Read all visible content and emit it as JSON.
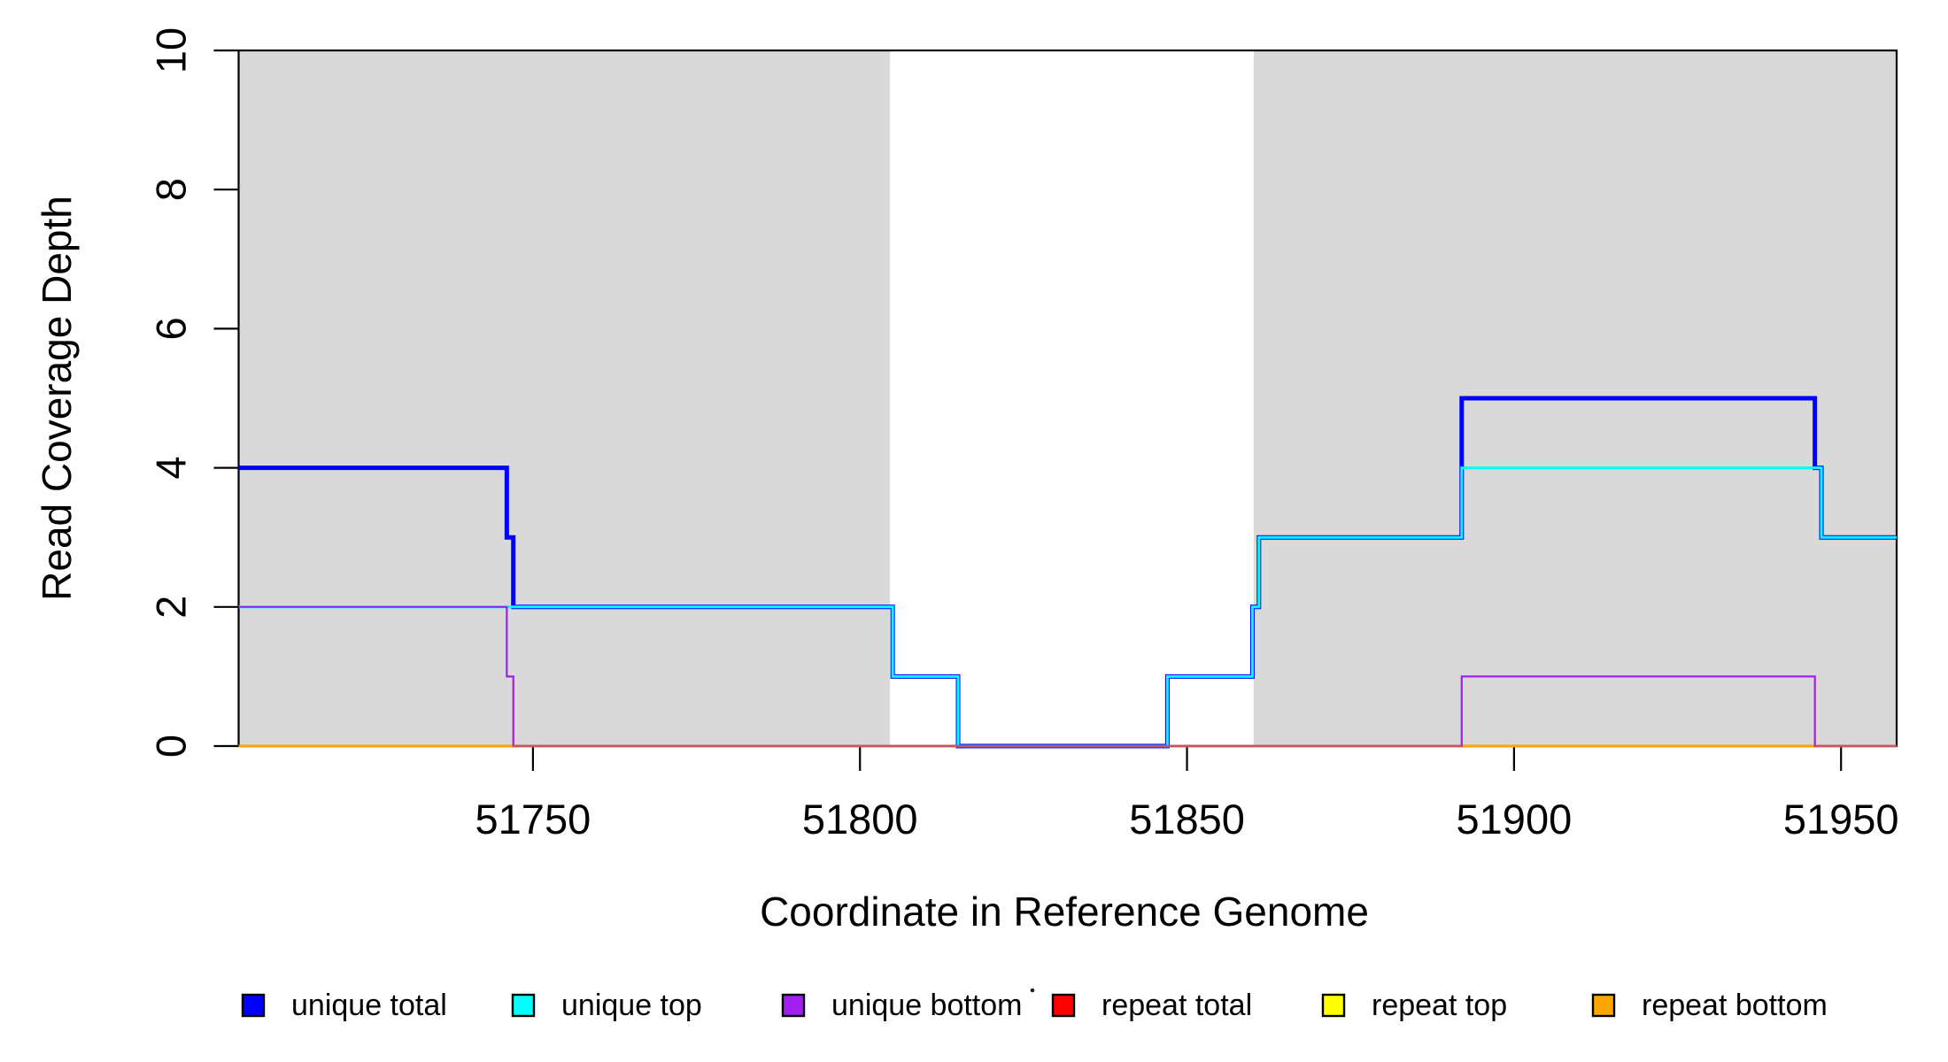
{
  "chart_data": {
    "type": "line",
    "subtype": "step-after",
    "title": "",
    "xlabel": "Coordinate in Reference Genome",
    "ylabel": "Read Coverage Depth",
    "xlim": [
      51705,
      51958.5
    ],
    "ylim": [
      0,
      10
    ],
    "x_ticks": [
      51750,
      51800,
      51850,
      51900,
      51950
    ],
    "x_tick_labels": [
      "51750",
      "51800",
      "51850",
      "51900",
      "51950"
    ],
    "y_ticks": [
      0,
      2,
      4,
      6,
      8,
      10
    ],
    "y_tick_labels": [
      "0",
      "2",
      "4",
      "6",
      "8",
      "10"
    ],
    "grid": false,
    "plot_bg": "#FFFFFF",
    "box_color": "#000000",
    "shaded_band_color": "#D9D9D9",
    "shaded_regions": [
      {
        "x0": 51705,
        "x1": 51804.6
      },
      {
        "x0": 51860.2,
        "x1": 51958.5
      }
    ],
    "series": [
      {
        "name": "unique total",
        "color": "#0000FF",
        "width": 5,
        "x": [
          51705,
          51746,
          51747,
          51805,
          51815,
          51847,
          51860,
          51861,
          51892,
          51946,
          51947
        ],
        "y": [
          4,
          3,
          2,
          1,
          0,
          1,
          2,
          3,
          5,
          4,
          3
        ]
      },
      {
        "name": "unique top",
        "color": "#00FFFF",
        "width": 3,
        "x": [
          51705,
          51805,
          51815,
          51847,
          51860,
          51861,
          51892,
          51947
        ],
        "y": [
          2,
          1,
          0,
          1,
          2,
          3,
          4,
          3
        ]
      },
      {
        "name": "unique bottom",
        "color": "#A020F0",
        "width": 2.2,
        "x": [
          51705,
          51746,
          51747,
          51892,
          51946
        ],
        "y": [
          2,
          1,
          0,
          1,
          0
        ]
      },
      {
        "name": "repeat total",
        "color": "#FF0000",
        "width": 3,
        "x": [
          51705
        ],
        "y": [
          0
        ]
      },
      {
        "name": "repeat top",
        "color": "#FFFF00",
        "width": 2.6,
        "x": [
          51705
        ],
        "y": [
          0
        ]
      },
      {
        "name": "repeat bottom",
        "color": "#FFA500",
        "width": 2.4,
        "x": [
          51705
        ],
        "y": [
          0
        ]
      }
    ],
    "draw_order": [
      "repeat total",
      "repeat top",
      "repeat bottom",
      "unique total",
      "unique top",
      "unique bottom"
    ],
    "baseline_blend": {
      "color": "#C2566C",
      "width": 2.4,
      "segments": [
        [
          51747,
          51892
        ],
        [
          51946,
          51958.5
        ]
      ]
    },
    "legend_position": "bottom"
  },
  "legend": {
    "items": [
      {
        "label": "unique total",
        "color": "#0000FF"
      },
      {
        "label": "unique top",
        "color": "#00FFFF"
      },
      {
        "label": "unique bottom",
        "color": "#A020F0"
      },
      {
        "label": "repeat total",
        "color": "#FF0000"
      },
      {
        "label": "repeat top",
        "color": "#FFFF00"
      },
      {
        "label": "repeat bottom",
        "color": "#FFA500"
      }
    ],
    "swatch_border_color": "#000000",
    "stray_dot": true
  }
}
